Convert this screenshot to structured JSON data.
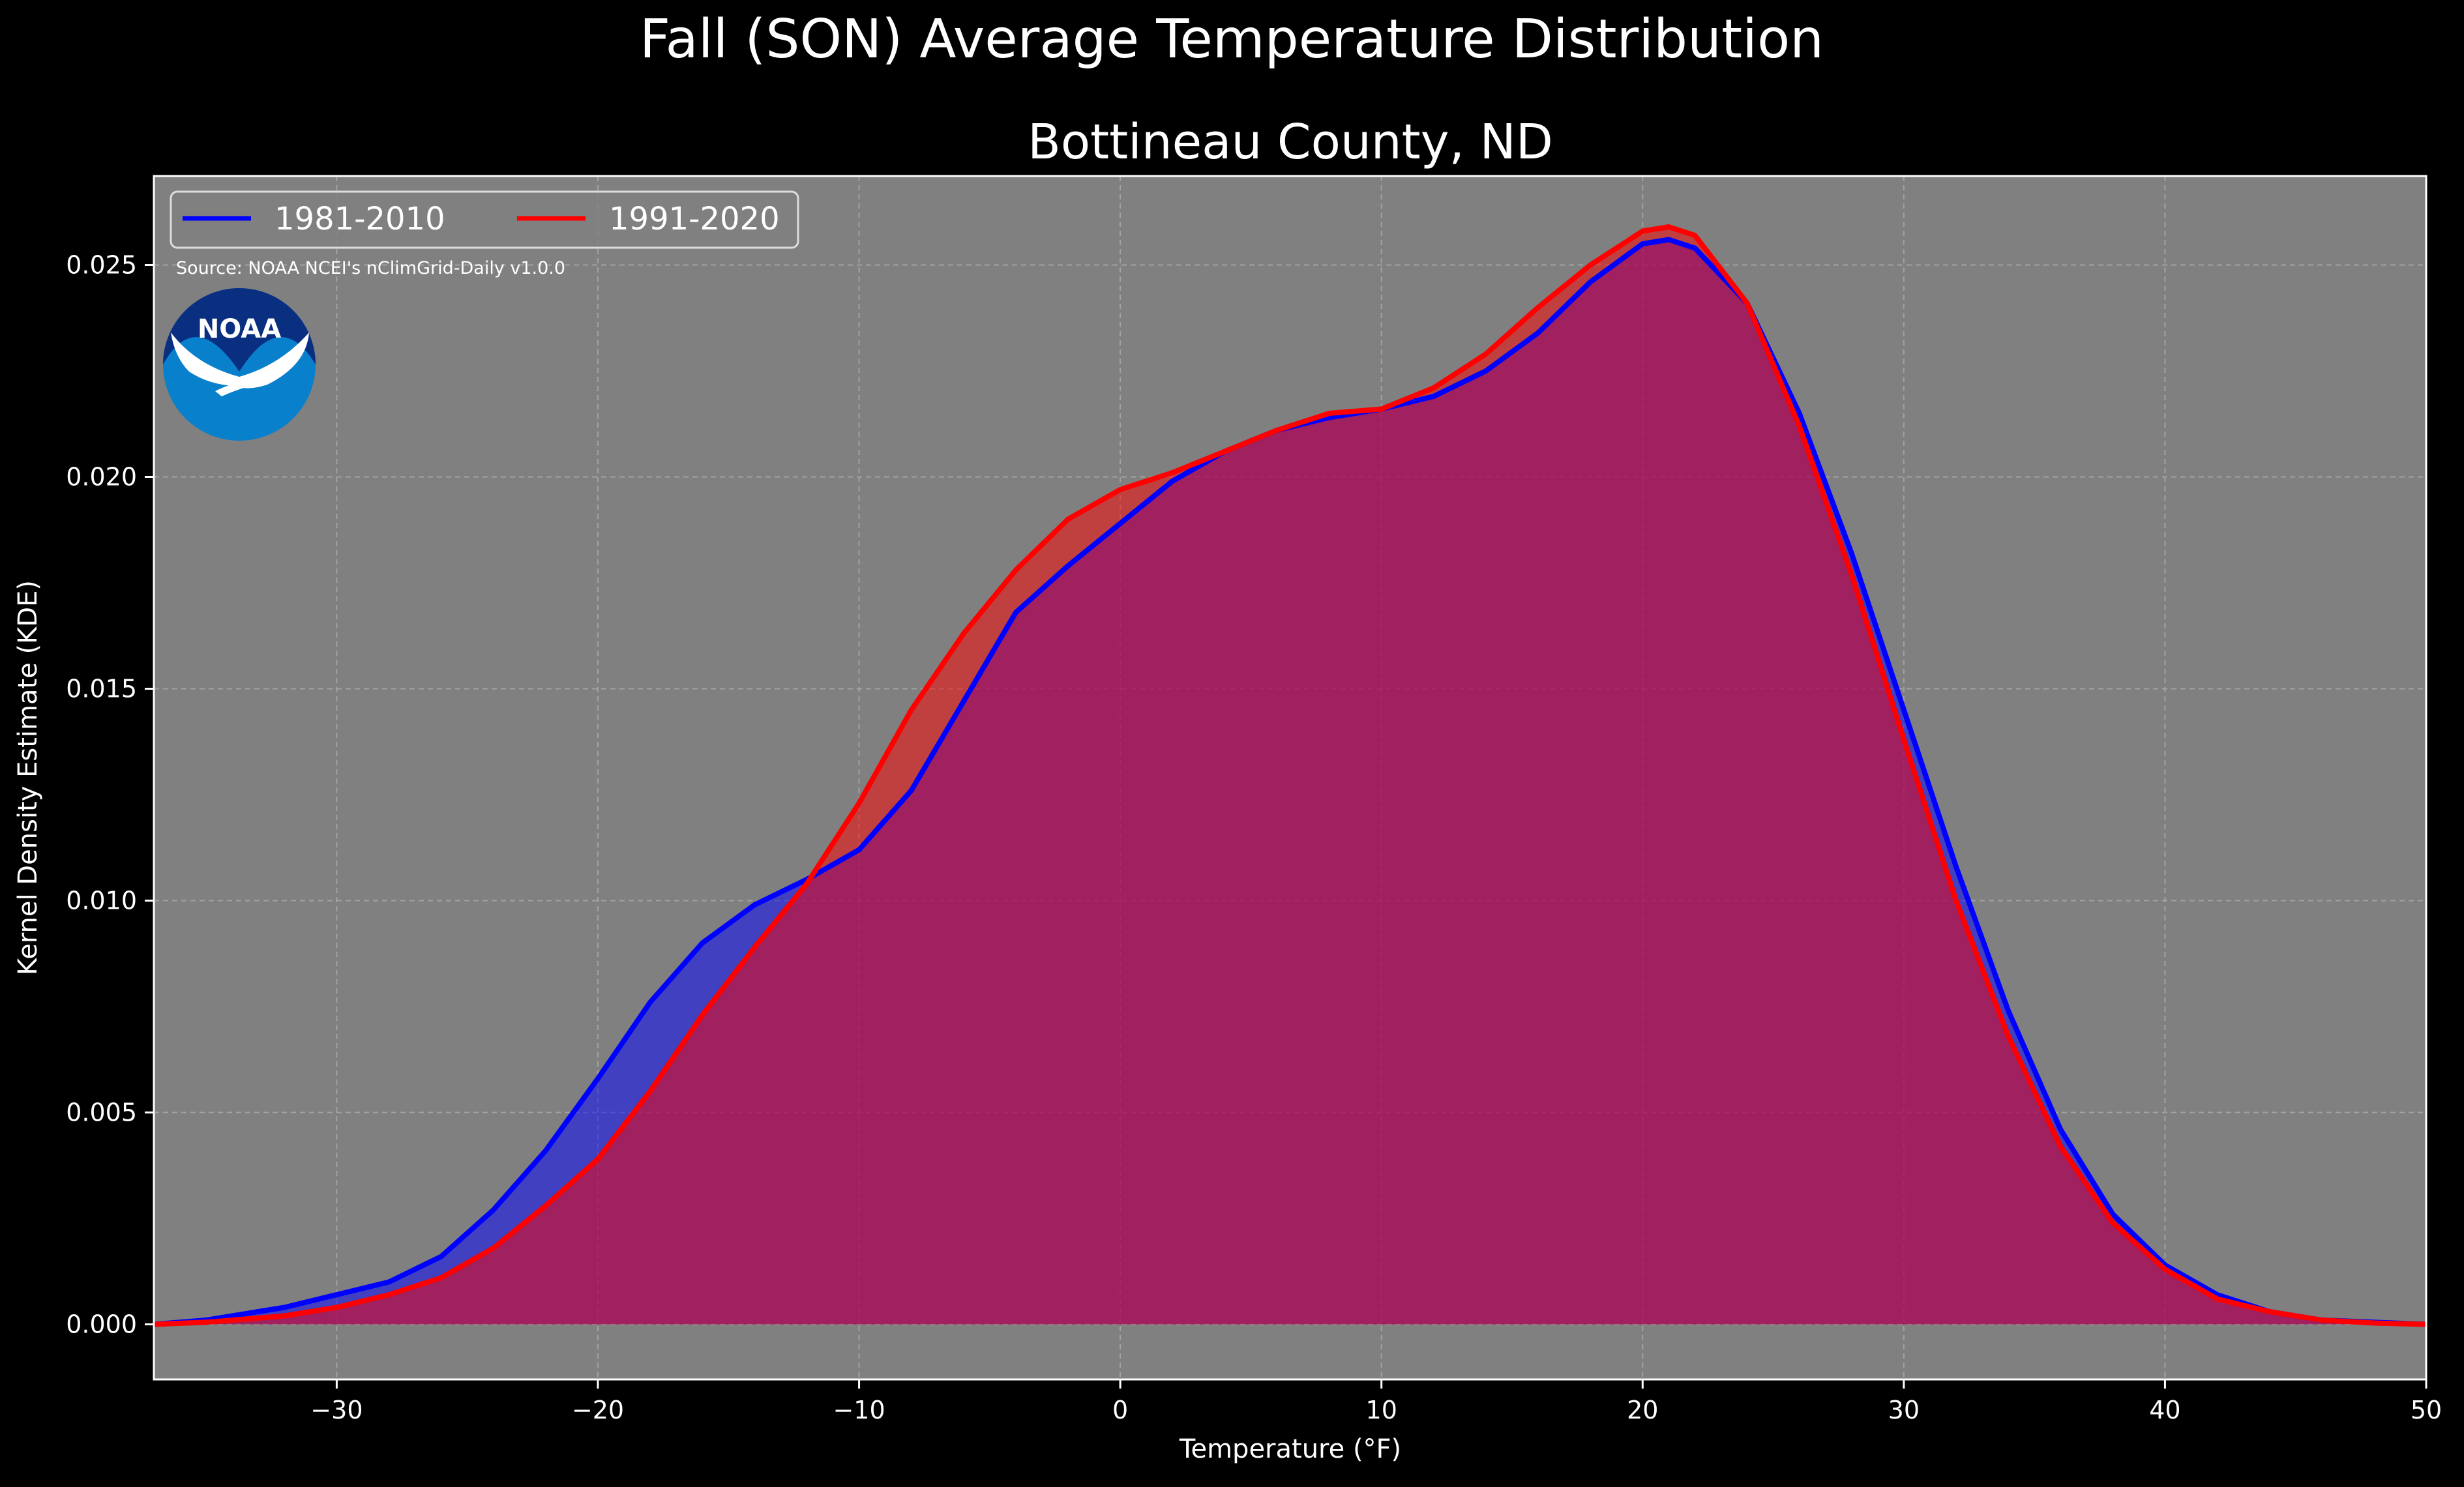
{
  "chart_data": {
    "type": "area",
    "title": "Fall (SON) Average Temperature Distribution",
    "subtitle": "Bottineau County, ND",
    "xlabel": "Temperature (°F)",
    "ylabel": "Kernel Density Estimate (KDE)",
    "xlim": [
      -37,
      50
    ],
    "ylim": [
      -0.0013,
      0.0271
    ],
    "x_ticks": [
      -30,
      -20,
      -10,
      0,
      10,
      20,
      30,
      40,
      50
    ],
    "x_tick_labels": [
      "−30",
      "−20",
      "−10",
      "0",
      "10",
      "20",
      "30",
      "40",
      "50"
    ],
    "y_ticks": [
      0.0,
      0.005,
      0.01,
      0.015,
      0.02,
      0.025
    ],
    "y_tick_labels": [
      "0.000",
      "0.005",
      "0.010",
      "0.015",
      "0.020",
      "0.025"
    ],
    "grid": true,
    "legend_position": "top-left",
    "annotation": "Source: NOAA NCEI's nClimGrid-Daily v1.0.0",
    "logo_text": "NOAA",
    "colors": {
      "background": "#000000",
      "plot_background": "#808080",
      "grid": "#b0b0b0",
      "series_1981": "#0000ff",
      "series_1991": "#ff0000",
      "overlap_fill": "#9c1e5c"
    },
    "series": [
      {
        "name": "1981-2010",
        "color": "#0000ff",
        "x": [
          -37,
          -35,
          -32,
          -30,
          -28,
          -26,
          -24,
          -22,
          -20,
          -18,
          -16,
          -14,
          -12,
          -10,
          -8,
          -6,
          -4,
          -2,
          0,
          2,
          4,
          6,
          8,
          10,
          12,
          14,
          16,
          18,
          20,
          21,
          22,
          24,
          26,
          28,
          30,
          32,
          34,
          36,
          38,
          40,
          42,
          44,
          46,
          48,
          50
        ],
        "y": [
          0.0,
          0.0001,
          0.0004,
          0.0007,
          0.001,
          0.0016,
          0.0027,
          0.0041,
          0.0058,
          0.0076,
          0.009,
          0.0099,
          0.0105,
          0.0112,
          0.0126,
          0.0147,
          0.0168,
          0.0179,
          0.0189,
          0.0199,
          0.0206,
          0.0211,
          0.0214,
          0.0216,
          0.0219,
          0.0225,
          0.0234,
          0.0246,
          0.0255,
          0.0256,
          0.0254,
          0.0241,
          0.0215,
          0.0182,
          0.0145,
          0.0108,
          0.0074,
          0.0046,
          0.0026,
          0.0014,
          0.0007,
          0.0003,
          0.0001,
          5e-05,
          0.0
        ]
      },
      {
        "name": "1991-2020",
        "color": "#ff0000",
        "x": [
          -37,
          -35,
          -32,
          -30,
          -28,
          -26,
          -24,
          -22,
          -20,
          -18,
          -16,
          -14,
          -12,
          -10,
          -8,
          -6,
          -4,
          -2,
          0,
          2,
          4,
          6,
          8,
          10,
          12,
          14,
          16,
          18,
          20,
          21,
          22,
          24,
          26,
          28,
          30,
          32,
          34,
          36,
          38,
          40,
          42,
          44,
          46,
          48,
          50
        ],
        "y": [
          0.0,
          5e-05,
          0.0002,
          0.0004,
          0.0007,
          0.0011,
          0.0018,
          0.0028,
          0.0039,
          0.0055,
          0.0073,
          0.0089,
          0.0104,
          0.0123,
          0.0145,
          0.0163,
          0.0178,
          0.019,
          0.0197,
          0.0201,
          0.0206,
          0.0211,
          0.0215,
          0.0216,
          0.0221,
          0.0229,
          0.024,
          0.025,
          0.0258,
          0.0259,
          0.0257,
          0.0241,
          0.0212,
          0.0177,
          0.0138,
          0.01,
          0.0068,
          0.0042,
          0.0024,
          0.0013,
          0.0006,
          0.0003,
          0.0001,
          3e-05,
          0.0
        ]
      }
    ]
  }
}
